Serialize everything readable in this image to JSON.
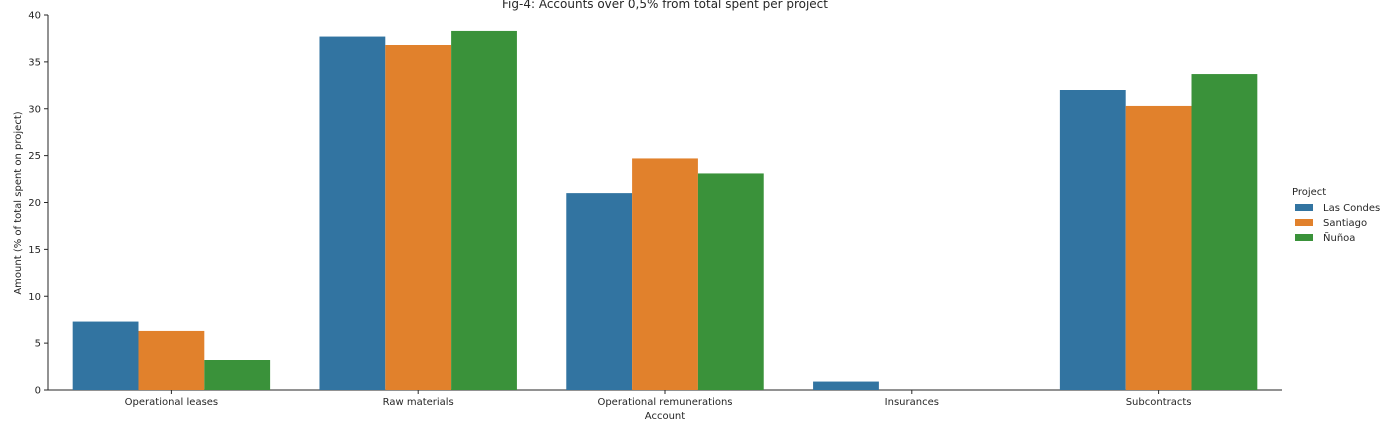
{
  "chart_data": {
    "type": "bar",
    "title": "Fig-4: Accounts over 0,5% from total spent per project",
    "xlabel": "Account",
    "ylabel": "Amount (% of total spent on project)",
    "categories": [
      "Operational leases",
      "Raw materials",
      "Operational remunerations",
      "Insurances",
      "Subcontracts"
    ],
    "series": [
      {
        "name": "Las Condes",
        "color": "#3274a1",
        "values": [
          7.3,
          37.7,
          21.0,
          0.9,
          32.0
        ]
      },
      {
        "name": "Santiago",
        "color": "#e1812c",
        "values": [
          6.3,
          36.8,
          24.7,
          0.0,
          30.3
        ]
      },
      {
        "name": "Ñuñoa",
        "color": "#3a923a",
        "values": [
          3.2,
          38.3,
          23.1,
          0.0,
          33.7
        ]
      }
    ],
    "ylim": [
      0,
      40
    ],
    "yticks": [
      0,
      5,
      10,
      15,
      20,
      25,
      30,
      35,
      40
    ],
    "grid": false,
    "legend": {
      "title": "Project",
      "placement": "right"
    }
  }
}
